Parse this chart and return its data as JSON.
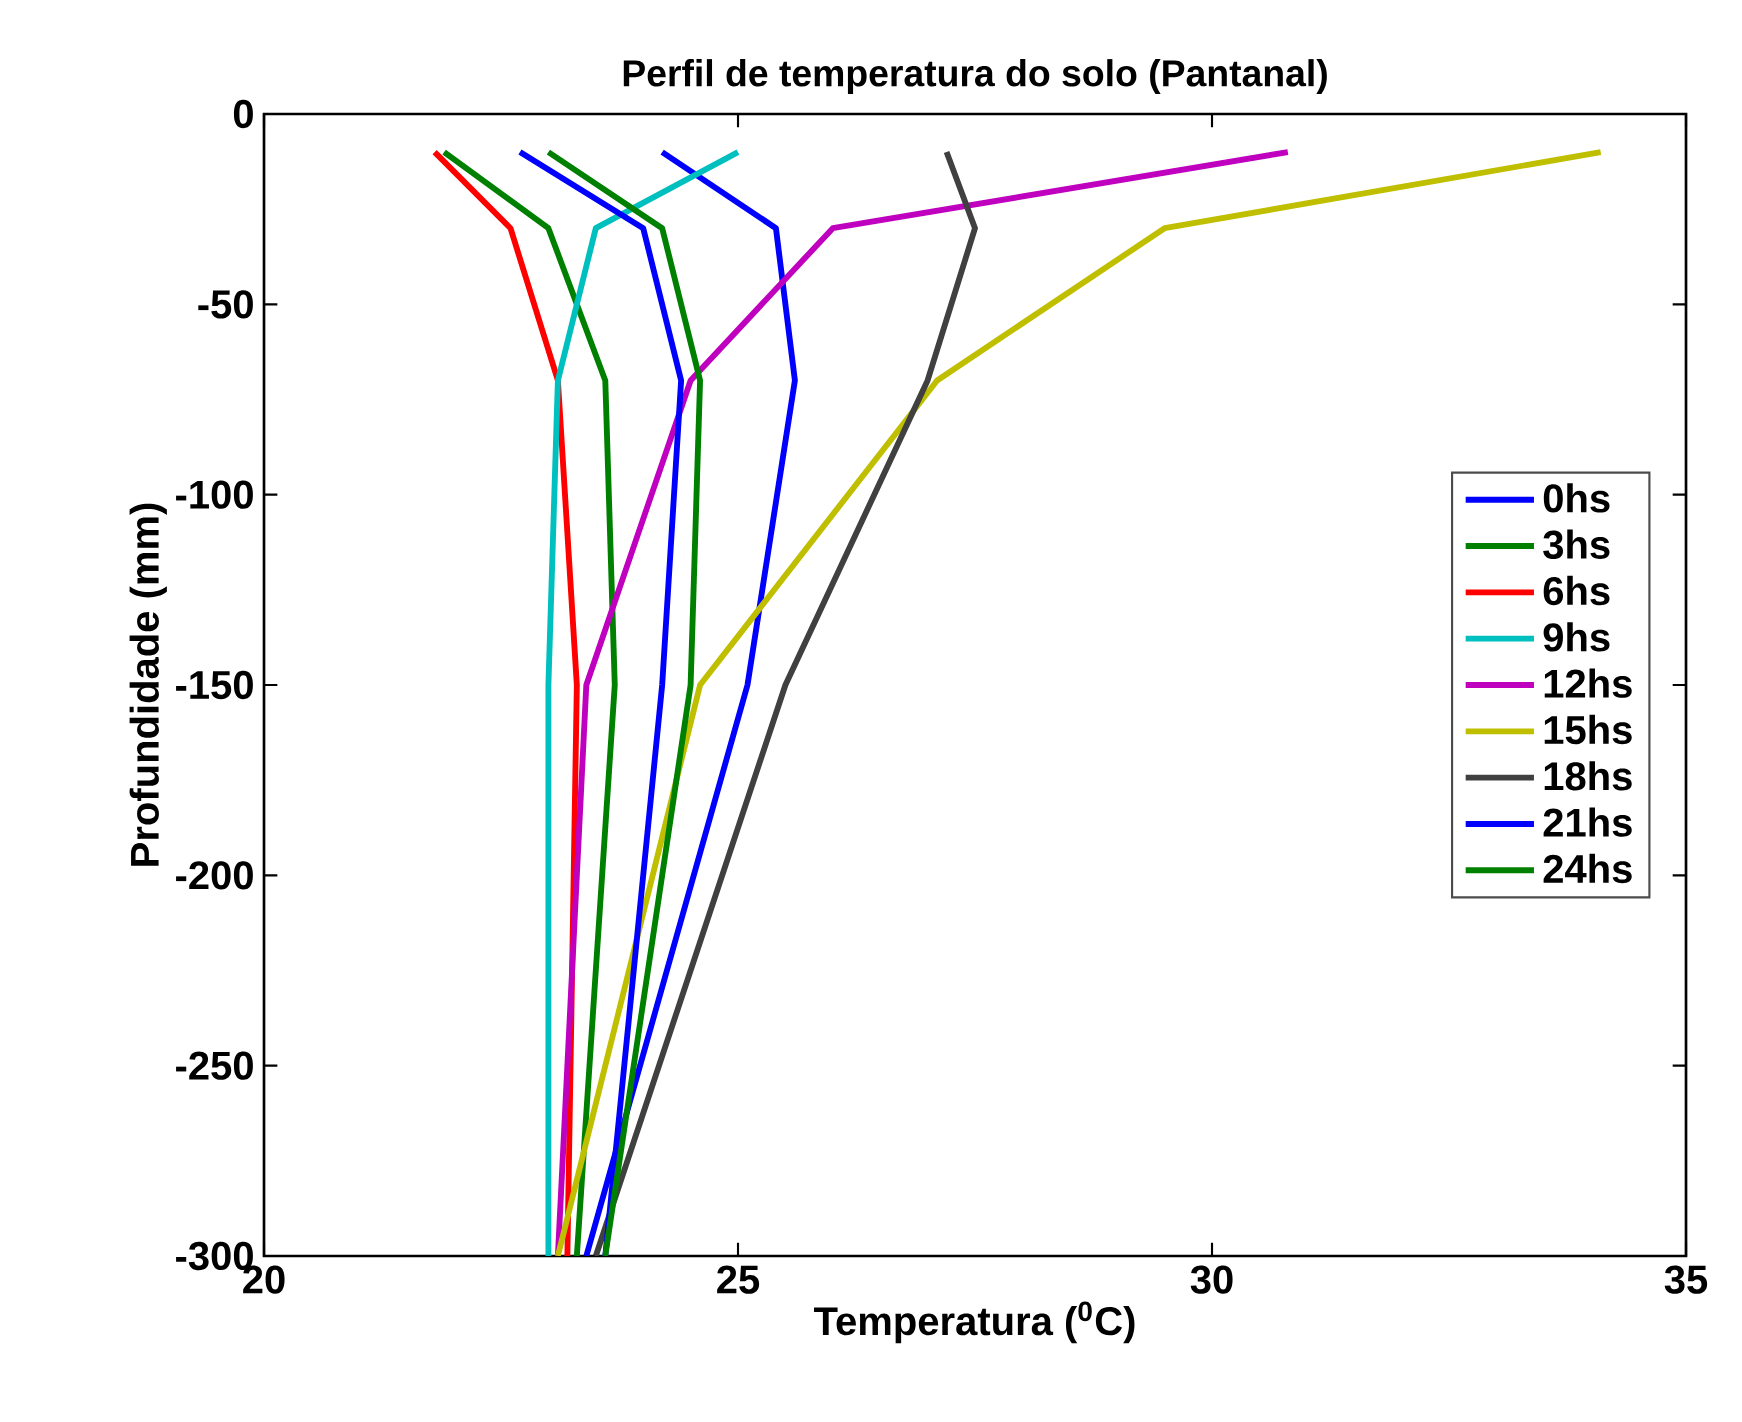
{
  "chart_data": {
    "type": "line",
    "title": "Perfil de temperatura do solo (Pantanal)",
    "xlabel": "Temperatura ($^{0}$C)",
    "ylabel": "Profundidade (mm)",
    "xlim": [
      20,
      35
    ],
    "ylim": [
      -300,
      0
    ],
    "xticks": [
      20,
      25,
      30,
      35
    ],
    "yticks": [
      -300,
      -250,
      -200,
      -150,
      -100,
      -50,
      0
    ],
    "grid": false,
    "legend": "right",
    "line_style": "solid",
    "marker": "none",
    "series": [
      {
        "name": "0hs",
        "color": "#0000ff",
        "x": [
          24.2,
          25.4,
          25.6,
          25.1,
          23.4
        ],
        "values": [
          -10,
          -30,
          -70,
          -150,
          -300
        ]
      },
      {
        "name": "3hs",
        "color": "#008000",
        "x": [
          21.9,
          23.0,
          23.6,
          23.7,
          23.3
        ],
        "values": [
          -10,
          -30,
          -70,
          -150,
          -300
        ]
      },
      {
        "name": "6hs",
        "color": "#ff0000",
        "x": [
          21.8,
          22.6,
          23.1,
          23.3,
          23.2
        ],
        "values": [
          -10,
          -30,
          -70,
          -150,
          -300
        ]
      },
      {
        "name": "9hs",
        "color": "#00bfbf",
        "x": [
          25.0,
          23.5,
          23.1,
          23.0,
          23.0
        ],
        "values": [
          -10,
          -30,
          -70,
          -150,
          -300
        ]
      },
      {
        "name": "12hs",
        "color": "#bf00bf",
        "x": [
          30.8,
          26.0,
          24.5,
          23.4,
          23.1
        ],
        "values": [
          -10,
          -30,
          -70,
          -150,
          -300
        ]
      },
      {
        "name": "15hs",
        "color": "#bfbf00",
        "x": [
          34.1,
          29.5,
          27.1,
          24.6,
          23.1
        ],
        "values": [
          -10,
          -30,
          -70,
          -150,
          -300
        ]
      },
      {
        "name": "18hs",
        "color": "#404040",
        "x": [
          27.2,
          27.5,
          27.0,
          25.5,
          23.5
        ],
        "values": [
          -10,
          -30,
          -70,
          -150,
          -300
        ]
      },
      {
        "name": "21hs",
        "color": "#0000ff",
        "x": [
          22.7,
          24.0,
          24.4,
          24.2,
          23.6
        ],
        "values": [
          -10,
          -30,
          -70,
          -150,
          -300
        ]
      },
      {
        "name": "24hs",
        "color": "#008000",
        "x": [
          23.0,
          24.2,
          24.6,
          24.5,
          23.6
        ],
        "values": [
          -10,
          -30,
          -70,
          -150,
          -300
        ]
      }
    ]
  }
}
